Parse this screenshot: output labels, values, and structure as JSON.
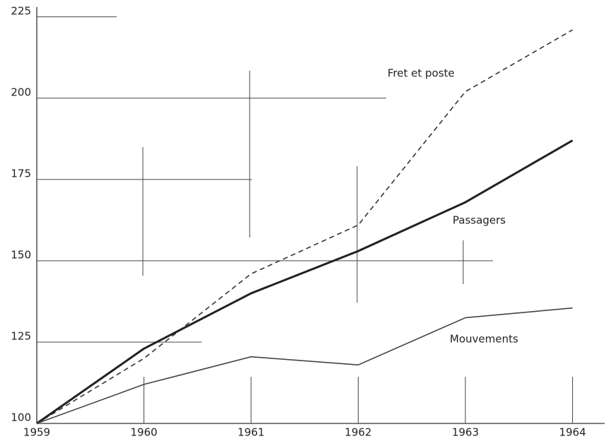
{
  "chart_data": {
    "type": "line",
    "x": [
      1959,
      1960,
      1961,
      1962,
      1963,
      1964
    ],
    "series": [
      {
        "name": "Fret et poste",
        "color": "#333333",
        "dashed": true,
        "values": [
          100,
          120,
          146,
          161,
          202,
          221
        ]
      },
      {
        "name": "Passagers",
        "color": "#222222",
        "values": [
          100,
          123,
          140,
          153,
          168,
          187
        ]
      },
      {
        "name": "Mouvements",
        "color": "#444444",
        "values": [
          100,
          112,
          120.5,
          118,
          132.5,
          135.5
        ]
      }
    ],
    "xlim": [
      1959,
      1964.3
    ],
    "xticks": [
      1959,
      1960,
      1961,
      1962,
      1963,
      1964
    ],
    "ylim": [
      100,
      228
    ],
    "yticks": [
      100,
      125,
      150,
      175,
      200,
      225
    ]
  }
}
